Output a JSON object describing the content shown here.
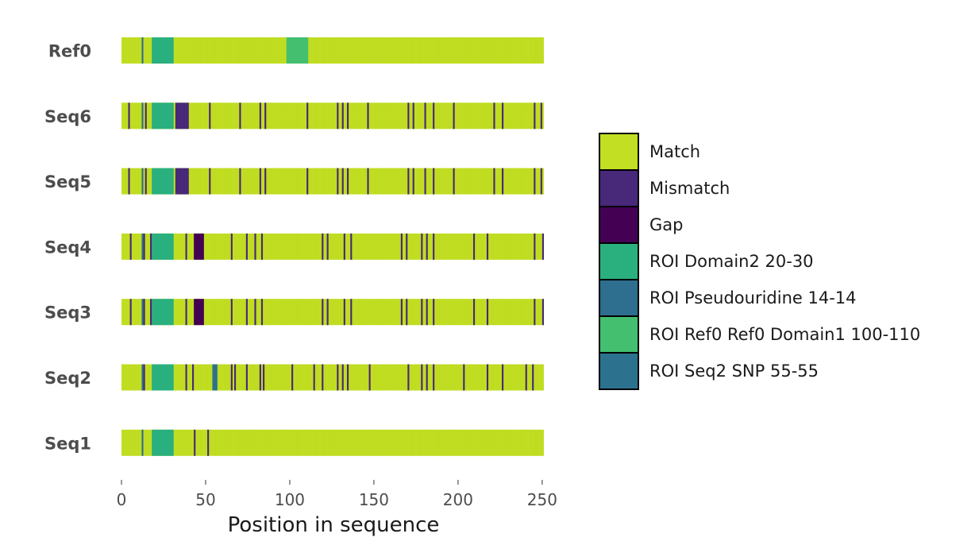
{
  "chart_data": {
    "type": "heatmap",
    "title": "",
    "xlabel": "Position in sequence",
    "ylabel": "",
    "xlim": [
      0,
      251
    ],
    "x_ticks": [
      0,
      50,
      100,
      150,
      200,
      250
    ],
    "x_tick_labels": [
      "0",
      "50",
      "100",
      "150",
      "200",
      "250"
    ],
    "legend_position": "right",
    "grid": false,
    "categories": [
      {
        "name": "Match",
        "color": "#c2df23"
      },
      {
        "name": "Mismatch",
        "color": "#482878"
      },
      {
        "name": "Gap",
        "color": "#440154"
      },
      {
        "name": "ROI Domain2 20-30",
        "color": "#2ab07f"
      },
      {
        "name": "ROI Pseudouridine 14-14",
        "color": "#2e6e8e"
      },
      {
        "name": "ROI Ref0 Ref0 Domain1 100-110",
        "color": "#44bf70"
      },
      {
        "name": "ROI Seq2 SNP 55-55",
        "color": "#2c728e"
      }
    ],
    "sequences": [
      {
        "name": "Ref0",
        "length": 251,
        "mismatch": [],
        "gap": [],
        "roi_domain2": [
          18,
          31
        ],
        "roi_pseudouridine": [
          12,
          15
        ],
        "roi_ref0_domain1": [
          98,
          111
        ],
        "roi_seq2_snp": null
      },
      {
        "name": "Seq6",
        "length": 251,
        "mismatch": [
          4,
          14,
          52,
          70,
          82,
          85,
          110,
          128,
          131,
          134,
          146,
          170,
          173,
          180,
          185,
          197,
          221,
          226,
          245,
          249
        ],
        "gap": [],
        "mismatch_range": [
          32,
          40
        ],
        "roi_domain2": [
          18,
          31
        ],
        "roi_pseudouridine": [
          12,
          15
        ],
        "roi_ref0_domain1": null,
        "roi_seq2_snp": null
      },
      {
        "name": "Seq5",
        "length": 251,
        "mismatch": [
          4,
          14,
          52,
          70,
          82,
          85,
          110,
          128,
          131,
          134,
          146,
          170,
          173,
          180,
          185,
          197,
          221,
          226,
          245,
          249
        ],
        "gap": [],
        "mismatch_range": [
          32,
          40
        ],
        "roi_domain2": [
          18,
          31
        ],
        "roi_pseudouridine": [
          12,
          15
        ],
        "roi_ref0_domain1": null,
        "roi_seq2_snp": null
      },
      {
        "name": "Seq4",
        "length": 251,
        "mismatch": [
          5,
          13,
          17,
          38,
          65,
          74,
          79,
          83,
          119,
          122,
          132,
          136,
          166,
          169,
          178,
          181,
          185,
          209,
          217,
          245,
          250
        ],
        "gap_range": [
          43,
          49
        ],
        "roi_domain2": [
          18,
          31
        ],
        "roi_pseudouridine": [
          12,
          15
        ],
        "roi_ref0_domain1": null,
        "roi_seq2_snp": null
      },
      {
        "name": "Seq3",
        "length": 251,
        "mismatch": [
          5,
          13,
          17,
          38,
          65,
          74,
          79,
          83,
          119,
          122,
          132,
          136,
          166,
          169,
          178,
          181,
          185,
          209,
          217,
          245,
          250
        ],
        "gap_range": [
          43,
          49
        ],
        "roi_domain2": [
          18,
          31
        ],
        "roi_pseudouridine": [
          12,
          15
        ],
        "roi_ref0_domain1": null,
        "roi_seq2_snp": null
      },
      {
        "name": "Seq2",
        "length": 251,
        "mismatch": [
          13,
          38,
          42,
          65,
          67,
          74,
          82,
          84,
          101,
          114,
          119,
          128,
          131,
          134,
          147,
          170,
          178,
          181,
          185,
          203,
          217,
          226,
          240,
          244
        ],
        "gap": [],
        "roi_domain2": [
          18,
          31
        ],
        "roi_pseudouridine": [
          12,
          15
        ],
        "roi_ref0_domain1": null,
        "roi_seq2_snp": [
          54,
          57
        ]
      },
      {
        "name": "Seq1",
        "length": 251,
        "mismatch": [
          43,
          51
        ],
        "gap": [],
        "roi_domain2": [
          18,
          31
        ],
        "roi_pseudouridine": [
          12,
          15
        ],
        "roi_ref0_domain1": null,
        "roi_seq2_snp": null
      }
    ]
  }
}
